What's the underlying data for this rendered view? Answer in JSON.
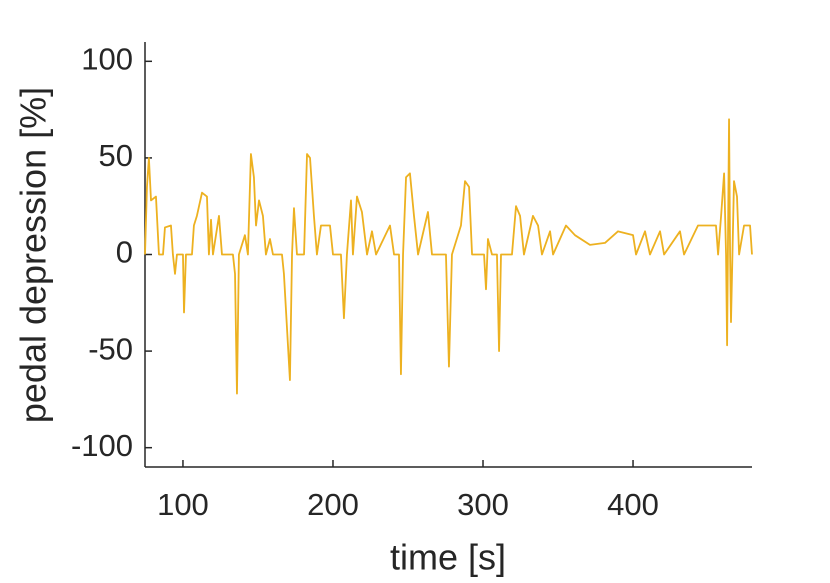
{
  "chart_data": {
    "type": "line",
    "xlabel": "time [s]",
    "ylabel": "pedal depression [%]",
    "xlim": [
      74.7,
      479.3
    ],
    "ylim": [
      -110,
      110
    ],
    "xticks": [
      100,
      200,
      300,
      400
    ],
    "yticks": [
      -100,
      -50,
      0,
      50,
      100
    ],
    "series": [
      {
        "color": "#EDB120",
        "x": [
          74.7,
          76,
          77.3,
          78.7,
          82,
          84,
          86.7,
          88,
          92,
          93.3,
          94.7,
          96,
          100,
          100.7,
          102,
          106,
          107.3,
          109.3,
          112.7,
          116,
          117.3,
          118.7,
          120,
          124,
          126,
          133.3,
          134.7,
          136,
          137.3,
          141.3,
          143.3,
          145.3,
          147.3,
          148.7,
          150.7,
          153.3,
          155.3,
          158,
          160,
          166,
          167.3,
          171.3,
          172.7,
          174,
          176,
          180.7,
          182.7,
          184.7,
          187.3,
          189.3,
          192,
          198,
          200,
          205.3,
          207.3,
          209.3,
          212,
          213.3,
          216,
          219.3,
          222.7,
          226,
          228.7,
          238,
          240.7,
          244,
          245.3,
          246.7,
          248.7,
          251.3,
          254,
          256.7,
          263.3,
          266,
          275.3,
          277.3,
          279.3,
          285.3,
          288,
          290.7,
          292.7,
          300.7,
          302,
          303.3,
          306,
          309.3,
          310.7,
          312,
          319.3,
          322,
          324.7,
          327.3,
          333.3,
          336.7,
          339.3,
          344.7,
          346.7,
          355.3,
          361.3,
          371.3,
          381.3,
          390,
          400,
          402,
          408,
          411.3,
          418,
          420.7,
          431.3,
          434,
          443.3,
          455.3,
          456.7,
          458.7,
          460.7,
          462,
          462.7,
          464,
          464.7,
          465.3,
          467.3,
          469.3,
          470.7,
          474,
          478,
          479.3
        ],
        "values": [
          0,
          35,
          50,
          28,
          30,
          0,
          0,
          14,
          15,
          0,
          -10,
          0,
          0,
          -30,
          0,
          0,
          15,
          20,
          32,
          30,
          0,
          18,
          0,
          20,
          0,
          0,
          -10,
          -72,
          0,
          10,
          0,
          52,
          40,
          15,
          28,
          20,
          0,
          8,
          0,
          0,
          -10,
          -65,
          0,
          24,
          0,
          0,
          52,
          50,
          20,
          0,
          15,
          15,
          0,
          0,
          -33,
          0,
          28,
          0,
          30,
          22,
          0,
          12,
          0,
          15,
          0,
          0,
          -62,
          0,
          40,
          42,
          20,
          0,
          22,
          0,
          0,
          -58,
          0,
          15,
          38,
          35,
          0,
          0,
          -18,
          8,
          0,
          0,
          -50,
          0,
          0,
          25,
          20,
          0,
          20,
          15,
          0,
          12,
          0,
          15,
          10,
          5,
          6,
          12,
          10,
          0,
          12,
          0,
          12,
          0,
          12,
          0,
          15,
          15,
          0,
          20,
          42,
          0,
          -47,
          70,
          0,
          -35,
          38,
          30,
          0,
          15,
          15,
          0
        ]
      }
    ]
  }
}
